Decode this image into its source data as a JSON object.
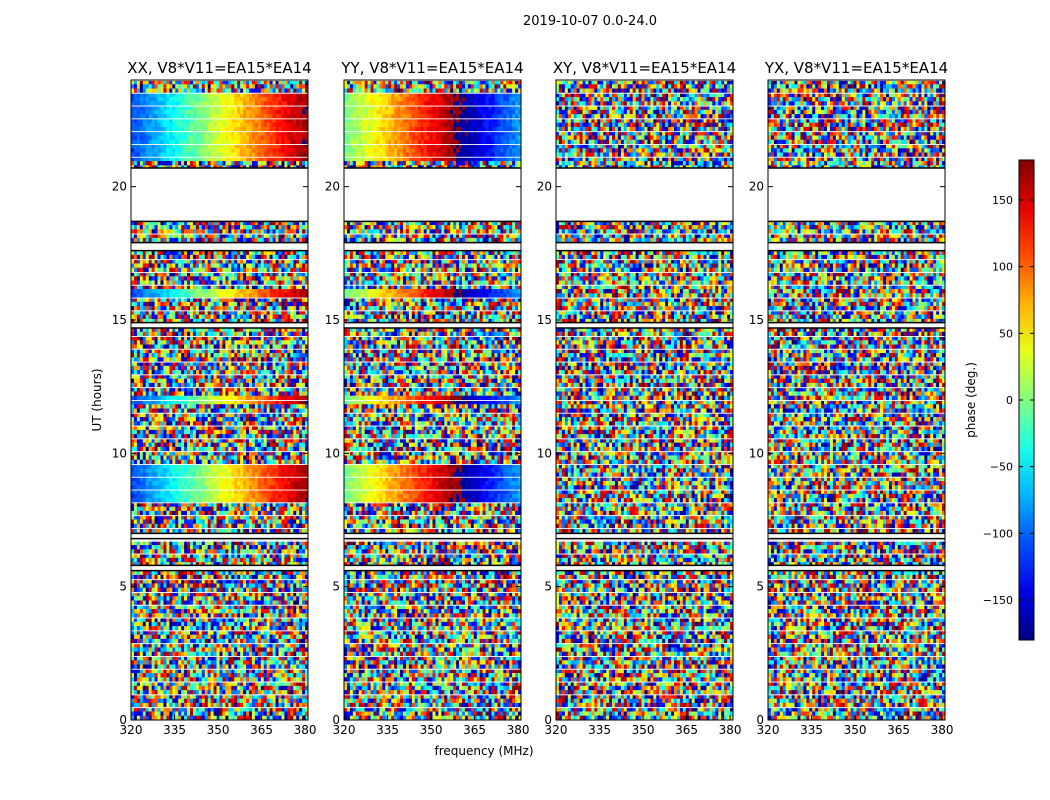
{
  "figure": {
    "suptitle": "2019-10-07 0.0-24.0"
  },
  "chart_data": {
    "type": "heatmap",
    "title": "2019-10-07 0.0-24.0",
    "xlabel": "frequency (MHz)",
    "ylabel": "UT (hours)",
    "xlim": [
      320,
      381
    ],
    "ylim": [
      0,
      24
    ],
    "xticks": [
      320,
      335,
      350,
      365,
      380
    ],
    "yticks": [
      0,
      5,
      10,
      15,
      20
    ],
    "panels": [
      {
        "title": "XX, V8*V11=EA15*EA14",
        "polarization": "XX",
        "baseline": "V8*V11=EA15*EA14"
      },
      {
        "title": "YY, V8*V11=EA15*EA14",
        "polarization": "YY",
        "baseline": "V8*V11=EA15*EA14"
      },
      {
        "title": "XY, V8*V11=EA15*EA14",
        "polarization": "XY",
        "baseline": "V8*V11=EA15*EA14"
      },
      {
        "title": "YX, V8*V11=EA15*EA14",
        "polarization": "YX",
        "baseline": "V8*V11=EA15*EA14"
      }
    ],
    "colorbar": {
      "label": "phase (deg.)",
      "range": [
        -180,
        180
      ],
      "ticks": [
        -150,
        -100,
        -50,
        0,
        50,
        100,
        150
      ],
      "colormap": "jet"
    },
    "blank_time_ranges_hours": [
      [
        18.7,
        20.7
      ],
      [
        17.6,
        17.9
      ],
      [
        14.7,
        14.9
      ],
      [
        6.8,
        7.0
      ],
      [
        5.6,
        5.8
      ]
    ]
  }
}
